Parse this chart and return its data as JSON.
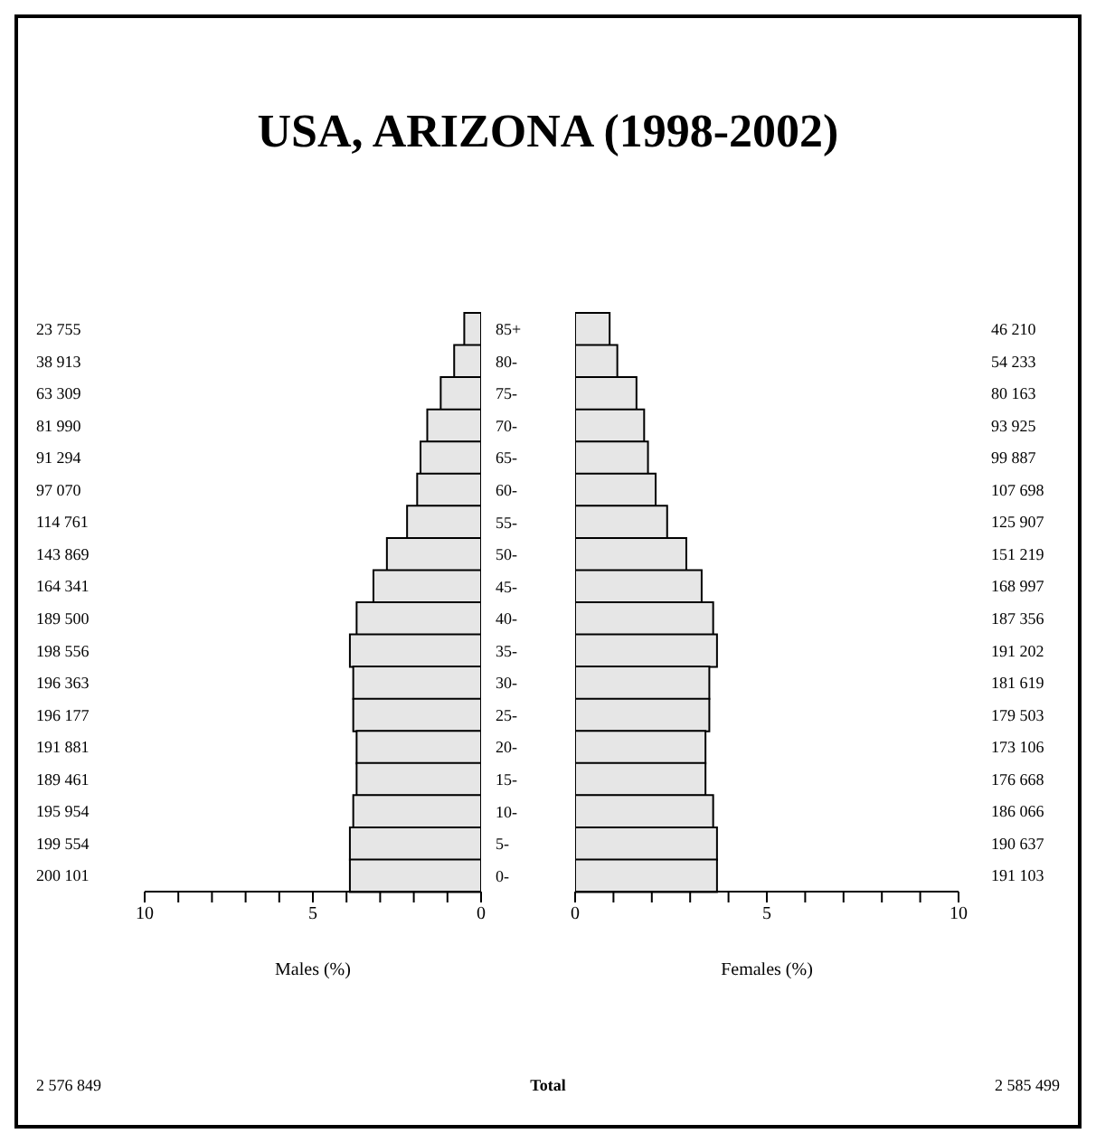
{
  "chart_data": [
    {
      "type": "bar",
      "orientation": "horizontal",
      "title": "USA, ARIZONA (1998-2002)",
      "xlabel": "Males (%)",
      "categories": [
        "85+",
        "80-",
        "75-",
        "70-",
        "65-",
        "60-",
        "55-",
        "50-",
        "45-",
        "40-",
        "35-",
        "30-",
        "25-",
        "20-",
        "15-",
        "10-",
        "5-",
        "0-"
      ],
      "values": [
        0.5,
        0.8,
        1.2,
        1.6,
        1.8,
        1.9,
        2.2,
        2.8,
        3.2,
        3.7,
        3.9,
        3.8,
        3.8,
        3.7,
        3.7,
        3.8,
        3.9,
        3.9
      ],
      "color": "#e6e6e6",
      "xlim": [
        10,
        0
      ],
      "xticks": [
        10,
        {
          "value": 9,
          "label": null
        },
        {
          "value": 8,
          "label": null
        },
        {
          "value": 7,
          "label": null
        },
        {
          "value": 6,
          "label": null
        },
        5,
        {
          "value": 4,
          "label": null
        },
        {
          "value": 3,
          "label": null
        },
        {
          "value": 2,
          "label": null
        },
        {
          "value": 1,
          "label": null
        },
        0
      ],
      "annotations": [
        "23 755",
        "38 913",
        "63 309",
        "81 990",
        "91 294",
        "97 070",
        "114 761",
        "143 869",
        "164 341",
        "189 500",
        "198 556",
        "196 363",
        "196 177",
        "191 881",
        "189 461",
        "195 954",
        "199 554",
        "200 101",
        "2 576 849",
        "Total"
      ]
    },
    {
      "type": "bar",
      "orientation": "horizontal",
      "xlabel": "Females (%)",
      "tick_labels": "x",
      "categories": [
        null,
        null,
        null,
        null,
        null,
        null,
        null,
        null,
        null,
        null,
        null,
        null,
        null,
        null,
        null,
        null,
        null,
        null
      ],
      "values": [
        0.9,
        1.1,
        1.6,
        1.8,
        1.9,
        2.1,
        2.4,
        2.9,
        3.3,
        3.6,
        3.7,
        3.5,
        3.5,
        3.4,
        3.4,
        3.6,
        3.7,
        3.7
      ],
      "color": "#e6e6e6",
      "xlim": [
        0,
        10
      ],
      "xticks": [
        0,
        {
          "value": 1,
          "label": null
        },
        {
          "value": 2,
          "label": null
        },
        {
          "value": 3,
          "label": null
        },
        {
          "value": 4,
          "label": null
        },
        5,
        {
          "value": 6,
          "label": null
        },
        {
          "value": 7,
          "label": null
        },
        {
          "value": 8,
          "label": null
        },
        {
          "value": 9,
          "label": null
        },
        10
      ],
      "annotations": [
        "46 210",
        "54 233",
        "80 163",
        "93 925",
        "99 887",
        "107 698",
        "125 907",
        "151 219",
        "168 997",
        "187 356",
        "191 202",
        "181 619",
        "179 503",
        "173 106",
        "176 668",
        "186 066",
        "190 637",
        "191 103",
        "2 585 499"
      ]
    }
  ]
}
